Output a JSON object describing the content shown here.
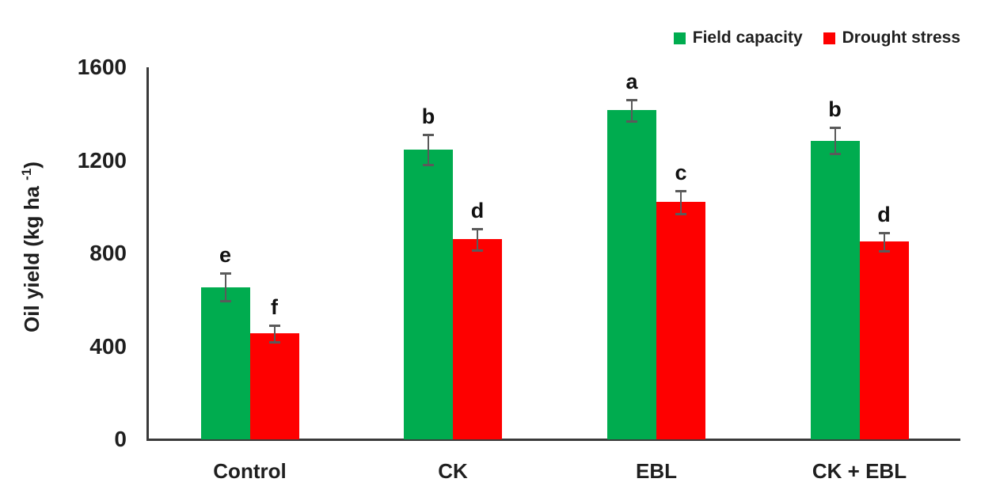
{
  "chart_data": {
    "type": "bar",
    "title": "",
    "xlabel": "",
    "ylabel": {
      "text": "Oil yield (kg ha ",
      "sup": "-1",
      "close": ")"
    },
    "categories": [
      "Control",
      "CK",
      "EBL",
      "CK + EBL"
    ],
    "series": [
      {
        "name": "Field capacity",
        "color": "#00AC4F",
        "values": [
          655,
          1245,
          1415,
          1285
        ],
        "errors": [
          60,
          65,
          45,
          55
        ],
        "letters": [
          "e",
          "b",
          "a",
          "b"
        ]
      },
      {
        "name": "Drought stress",
        "color": "#FE0000",
        "values": [
          455,
          860,
          1020,
          850
        ],
        "errors": [
          35,
          45,
          50,
          40
        ],
        "letters": [
          "f",
          "d",
          "c",
          "d"
        ]
      }
    ],
    "y_ticks": [
      0,
      400,
      800,
      1200,
      1600
    ],
    "ylim": [
      0,
      1600
    ],
    "legend_position": "top-right",
    "grid": false,
    "error_bar_color": "#5a5a5a",
    "axis_color": "#3a3a3a"
  }
}
